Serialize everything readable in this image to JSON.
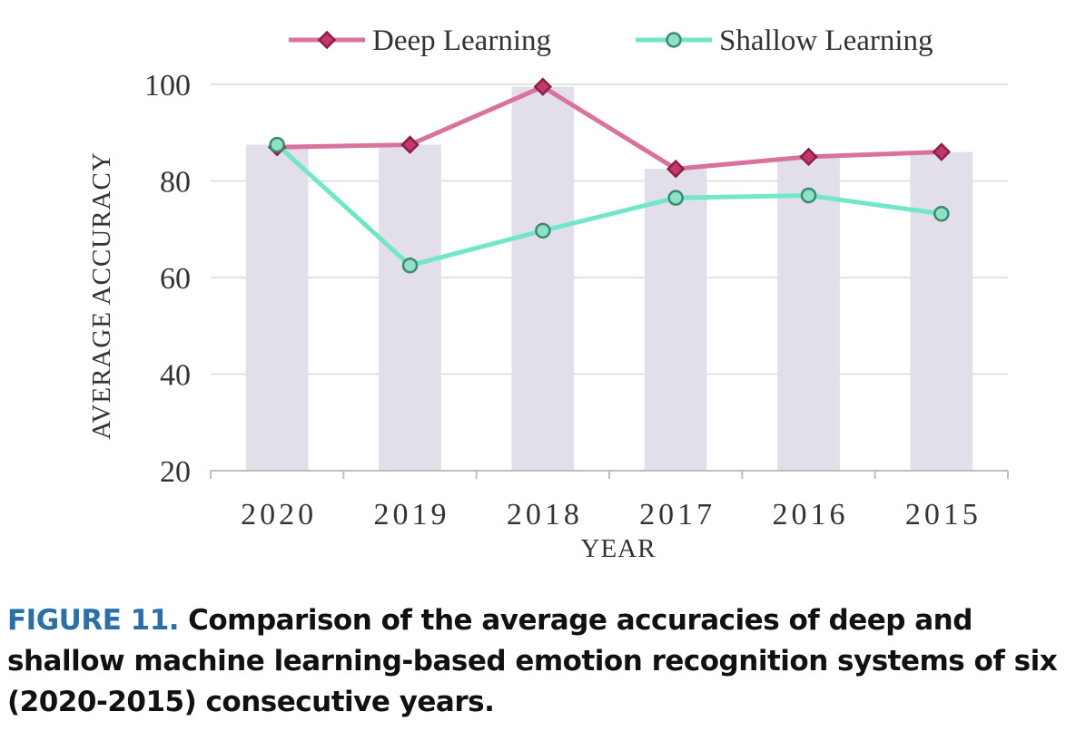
{
  "chart_data": {
    "type": "bar",
    "categories": [
      "2020",
      "2019",
      "2018",
      "2017",
      "2016",
      "2015"
    ],
    "bar_values": [
      87.5,
      87.5,
      99.5,
      82.5,
      85,
      86
    ],
    "series": [
      {
        "name": "Deep Learning",
        "type": "line",
        "values": [
          87,
          87.5,
          99.5,
          82.5,
          85,
          86
        ],
        "color": "#d9739d",
        "marker": "diamond",
        "marker_fill": "#c2386b",
        "marker_stroke": "#8c1f48"
      },
      {
        "name": "Shallow Learning",
        "type": "line",
        "values": [
          87.5,
          62.5,
          69.7,
          76.5,
          77,
          73.2
        ],
        "color": "#72e6c8",
        "marker": "circle",
        "marker_fill": "#8ee0c6",
        "marker_stroke": "#3a8a70"
      }
    ],
    "bar_color": "#e2dfea",
    "xlabel": "YEAR",
    "ylabel": "AVERAGE ACCURACY",
    "ylim": [
      20,
      100
    ],
    "yticks": [
      "100",
      "80",
      "60",
      "40",
      "20"
    ],
    "ytick_values": [
      100,
      80,
      60,
      40,
      20
    ],
    "grid": true,
    "legend_position": "top"
  },
  "caption": {
    "label": "FIGURE 11.",
    "text": "Comparison of the average accuracies of deep and shallow machine learning-based emotion recognition systems of six (2020-2015) consecutive years."
  }
}
